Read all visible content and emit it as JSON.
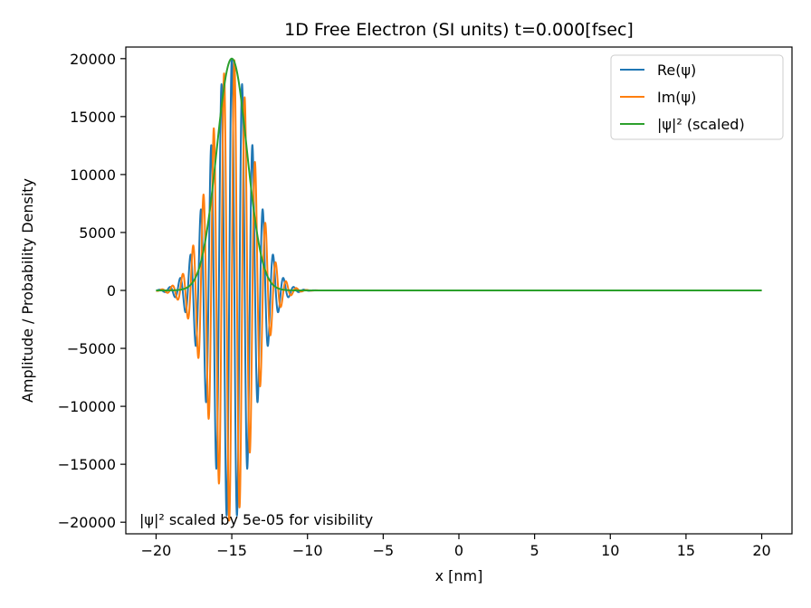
{
  "chart_data": {
    "type": "line",
    "title": "1D Free Electron (SI units)   t=0.000[fsec]",
    "xlabel": "x [nm]",
    "ylabel": "Amplitude / Probability Density",
    "xlim": [
      -22,
      22
    ],
    "ylim": [
      -21000,
      21000
    ],
    "xticks": [
      -20,
      -15,
      -10,
      -5,
      0,
      5,
      10,
      15,
      20
    ],
    "xtick_labels": [
      "−20",
      "−15",
      "−10",
      "−5",
      "0",
      "5",
      "10",
      "15",
      "20"
    ],
    "yticks": [
      -20000,
      -15000,
      -10000,
      -5000,
      0,
      5000,
      10000,
      15000,
      20000
    ],
    "ytick_labels": [
      "−20000",
      "−15000",
      "−10000",
      "−5000",
      "0",
      "5000",
      "10000",
      "15000",
      "20000"
    ],
    "grid": false,
    "legend_position": "upper right",
    "wave_packet": {
      "center": -15,
      "amplitude": 20000,
      "envelope_sigma": 1.41,
      "wavenumber": 9.2,
      "x_range": [
        -20,
        20
      ]
    },
    "series": [
      {
        "name": "Re(ψ)",
        "color": "#1f77b4",
        "kind": "real"
      },
      {
        "name": "Im(ψ)",
        "color": "#ff7f0e",
        "kind": "imag"
      },
      {
        "name": "|ψ|² (scaled)",
        "color": "#2ca02c",
        "kind": "density"
      }
    ],
    "annotation": "|ψ|² scaled by 5e-05 for visibility"
  }
}
